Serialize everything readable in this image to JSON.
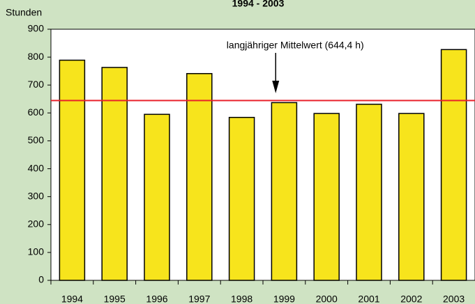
{
  "chart_data": {
    "type": "bar",
    "title": "1994 - 2003",
    "y_label": "Stunden",
    "categories": [
      "1994",
      "1995",
      "1996",
      "1997",
      "1998",
      "1999",
      "2000",
      "2001",
      "2002",
      "2003"
    ],
    "values": [
      789,
      763,
      595,
      741,
      584,
      637,
      598,
      631,
      598,
      827
    ],
    "color": "#f7e41c",
    "ylim": [
      0,
      900
    ],
    "yticks": [
      0,
      100,
      200,
      300,
      400,
      500,
      600,
      700,
      800,
      900
    ],
    "reference_line": {
      "value": 644.4,
      "label": "langjähriger Mittelwert (644,4 h)",
      "color": "#e8202a"
    }
  }
}
